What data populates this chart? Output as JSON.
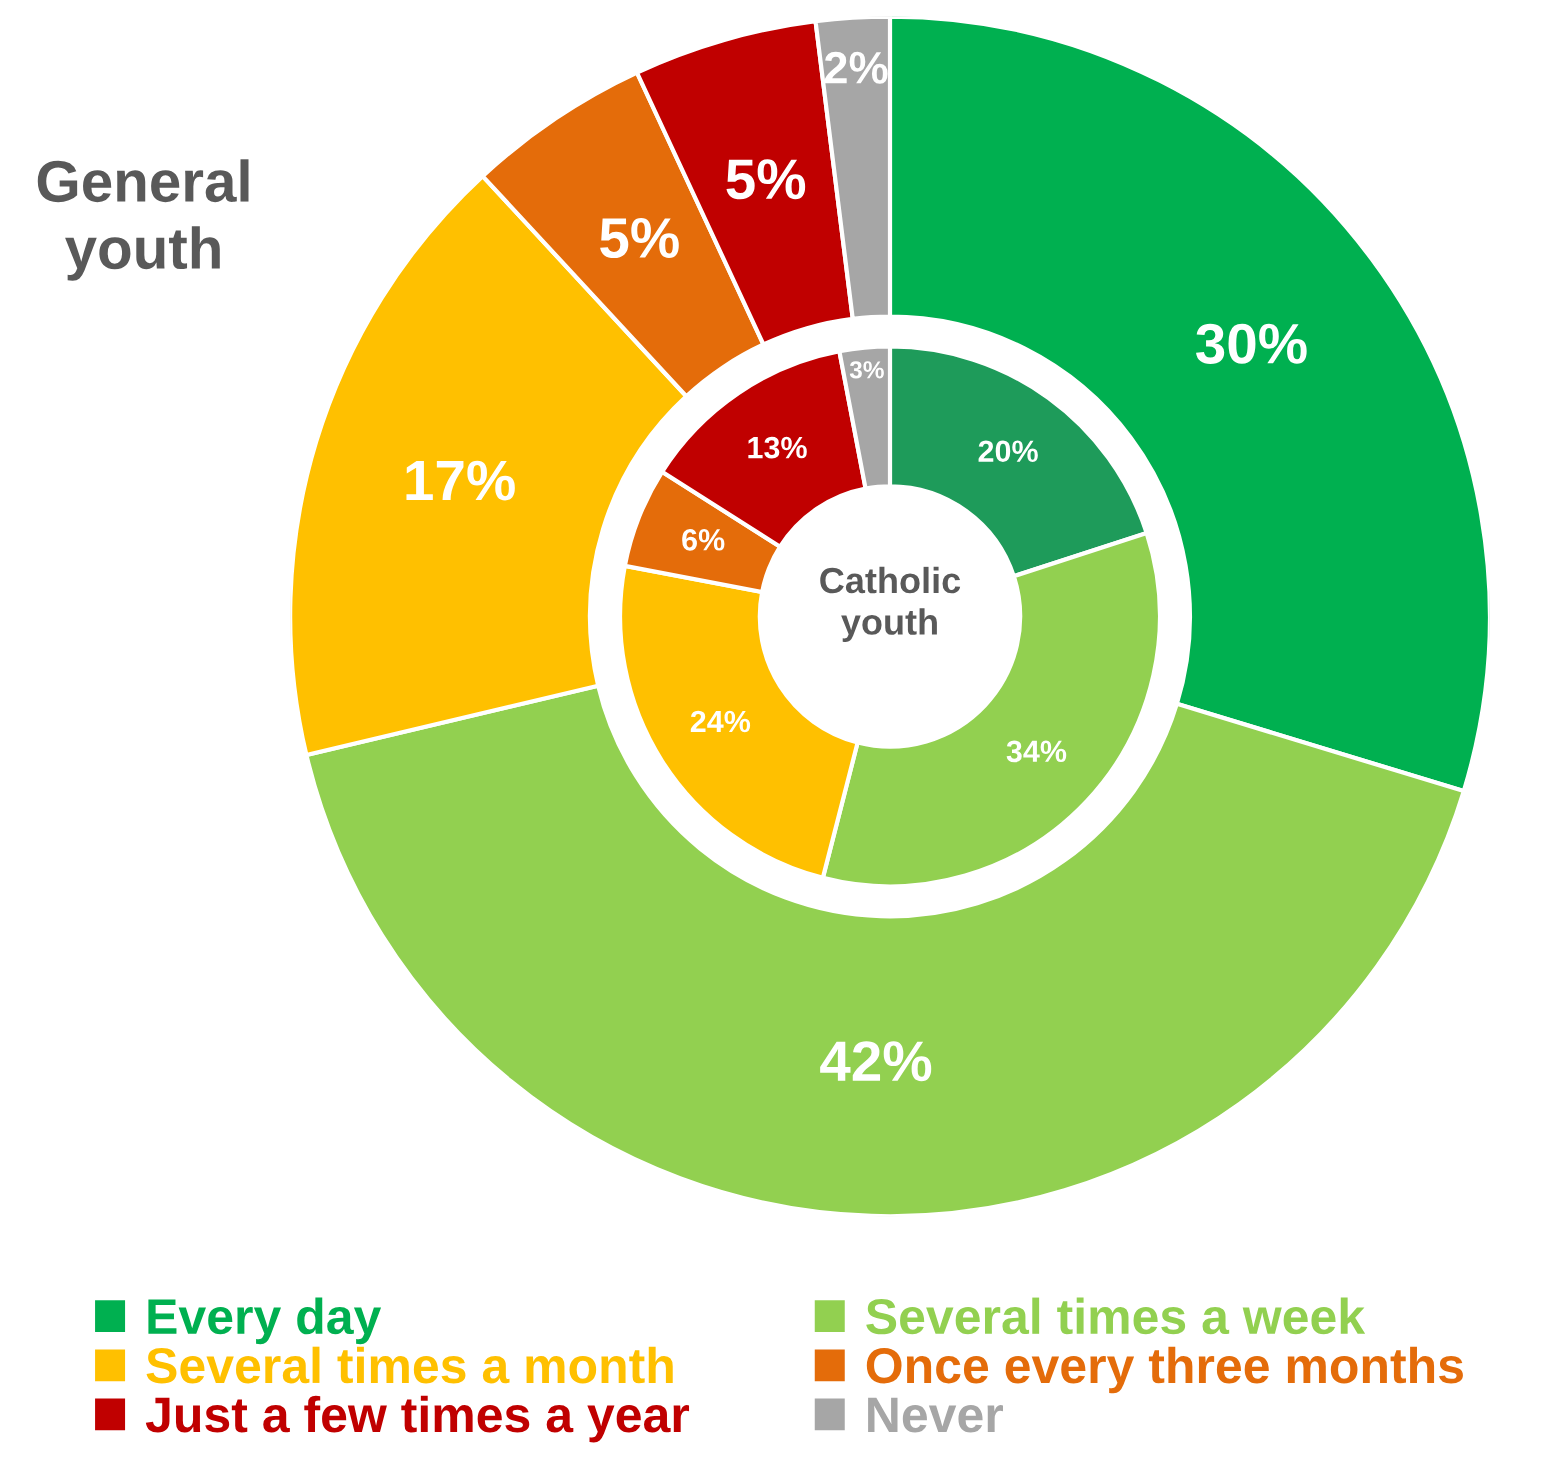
{
  "chart_data": {
    "type": "donut",
    "categories": [
      "Every day",
      "Several times a week",
      "Several times a month",
      "Once every three months",
      "Just a few times a year",
      "Never"
    ],
    "series": [
      {
        "name": "General youth",
        "values": [
          30,
          42,
          17,
          5,
          5,
          2
        ],
        "value_labels": [
          "30%",
          "42%",
          "17%",
          "5%",
          "5%",
          "2%"
        ],
        "colors": [
          "#00b050",
          "#92d050",
          "#ffc000",
          "#e46c0a",
          "#c00000",
          "#a6a6a6"
        ]
      },
      {
        "name": "Catholic youth",
        "values": [
          20,
          34,
          24,
          6,
          13,
          3
        ],
        "value_labels": [
          "20%",
          "34%",
          "24%",
          "6%",
          "13%",
          "3%"
        ],
        "colors": [
          "#1e9b5a",
          "#92d050",
          "#ffc000",
          "#e46c0a",
          "#c00000",
          "#a6a6a6"
        ]
      }
    ],
    "legend": "bottom"
  }
}
